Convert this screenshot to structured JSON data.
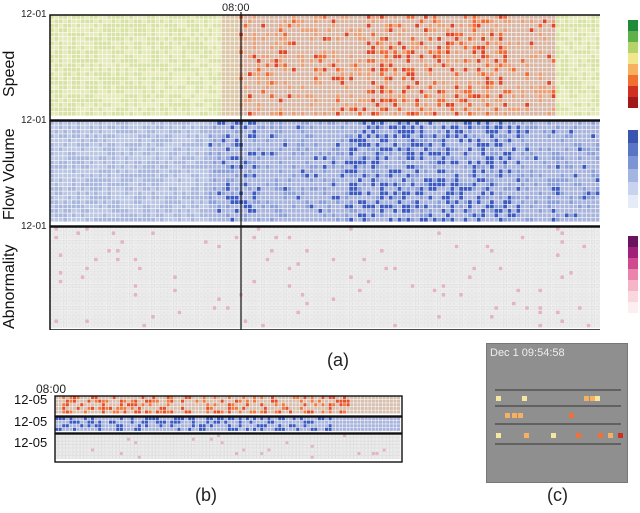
{
  "panel_a": {
    "time_marker": "08:00",
    "rows": [
      {
        "label": "Speed",
        "date_label": "12-01"
      },
      {
        "label": "Flow Volume",
        "date_label": "12-01"
      },
      {
        "label": "Abnormality",
        "date_label": "12-01"
      }
    ],
    "caption": "(a)"
  },
  "panel_b": {
    "time_marker": "08:00",
    "date_labels": [
      "12-05",
      "12-05",
      "12-05"
    ],
    "caption": "(b)"
  },
  "panel_c": {
    "timestamp": "Dec 1 09:54:58",
    "caption": "(c)"
  },
  "colors": {
    "speed_legend": [
      "#1e8a3a",
      "#5fb24a",
      "#b6d36a",
      "#f0e68c",
      "#f7b060",
      "#f07030",
      "#d03020",
      "#a01818"
    ],
    "flow_legend": [
      "#3a55b0",
      "#5a75c5",
      "#7d95d5",
      "#a3b6e2",
      "#c7d3ef",
      "#e6ecf7"
    ],
    "abnormality_legend": [
      "#6a1460",
      "#a0207a",
      "#d04a90",
      "#ea84ad",
      "#f5b4c8",
      "#fad6df",
      "#fdeef1"
    ]
  }
}
